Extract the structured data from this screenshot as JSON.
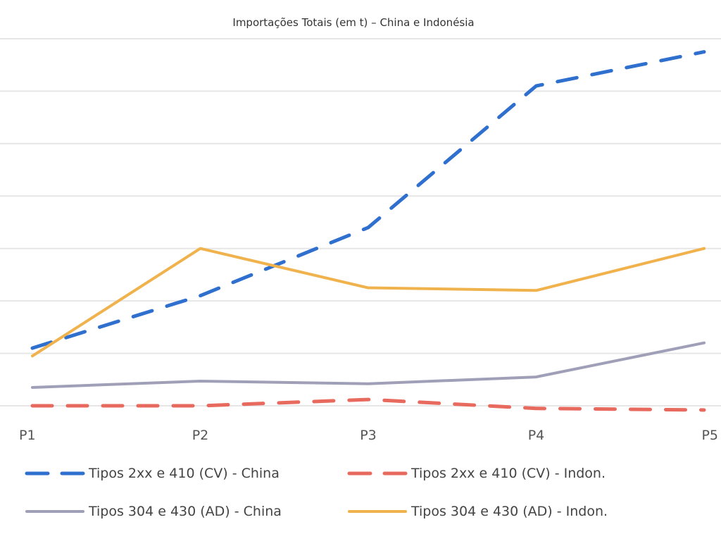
{
  "chart_data": {
    "type": "line",
    "title": "Importações Totais (em t) – China e Indonésia",
    "xlabel": "",
    "ylabel": "",
    "categories": [
      "P1",
      "P2",
      "P3",
      "P4",
      "P5"
    ],
    "ylim": [
      0,
      7.0
    ],
    "grid": true,
    "legend_position": "bottom",
    "series": [
      {
        "name": "Tipos 2xx e 410 (CV) - China",
        "values": [
          1.1,
          2.1,
          3.4,
          6.1,
          6.75
        ],
        "color": "#2f6fce",
        "dashed": true
      },
      {
        "name": "Tipos 2xx e 410 (CV) - Indon.",
        "values": [
          0.0,
          0.0,
          0.12,
          -0.05,
          -0.08
        ],
        "color": "#e86a5e",
        "dashed": true
      },
      {
        "name": "Tipos 304 e 430 (AD) - China",
        "values": [
          0.35,
          0.47,
          0.42,
          0.55,
          1.2
        ],
        "color": "#9fa0b8",
        "dashed": false
      },
      {
        "name": "Tipos 304 e 430 (AD) - Indon.",
        "values": [
          0.95,
          3.0,
          2.25,
          2.2,
          3.0
        ],
        "color": "#f0b24c",
        "dashed": false
      }
    ]
  }
}
